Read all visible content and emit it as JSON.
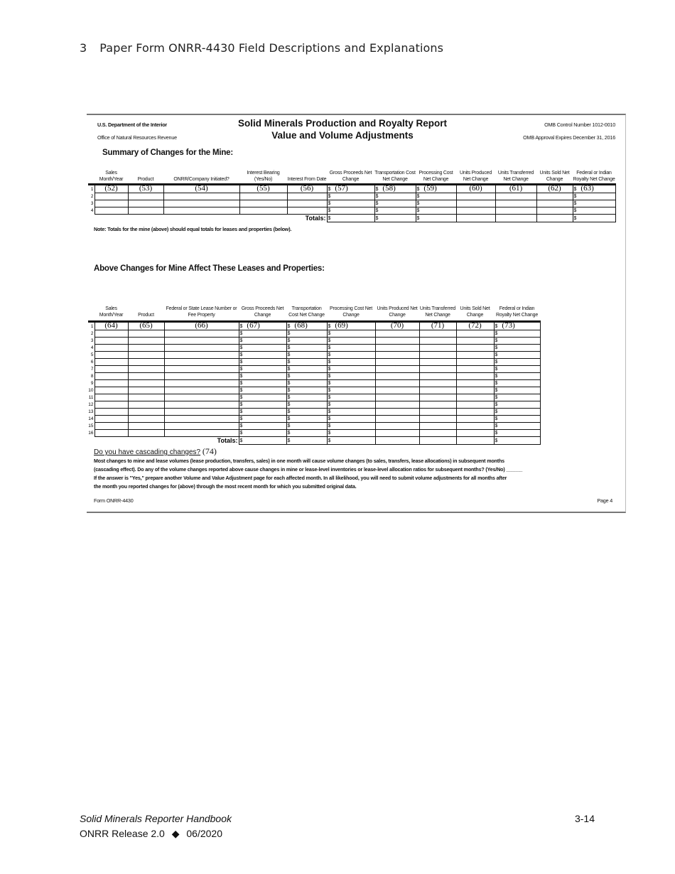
{
  "section_heading": {
    "number": "3",
    "title": "Paper Form ONRR-4430 Field Descriptions and Explanations"
  },
  "form": {
    "agency": "U.S. Department of the Interior",
    "office": "Office of Natural Resources Revenue",
    "title_line1": "Solid Minerals Production and Royalty Report",
    "title_line2": "Value and Volume Adjustments",
    "omb_control": "OMB Control Number 1012-0010",
    "omb_expires": "OMB Approval Expires December 31, 2016",
    "summary": {
      "title": "Summary of Changes for the Mine:",
      "columns": [
        {
          "label": "Sales Month/Year",
          "field": "(52)",
          "dollar": false
        },
        {
          "label": "Product",
          "field": "(53)",
          "dollar": false
        },
        {
          "label": "ONRR/Company Initiated?",
          "field": "(54)",
          "dollar": false
        },
        {
          "label": "Interest Bearing (Yes/No)",
          "field": "(55)",
          "dollar": false
        },
        {
          "label": "Interest From Date",
          "field": "(56)",
          "dollar": false
        },
        {
          "label": "Gross Proceeds Net Change",
          "field": "(57)",
          "dollar": true
        },
        {
          "label": "Transportation Cost Net Change",
          "field": "(58)",
          "dollar": true
        },
        {
          "label": "Processing Cost Net Change",
          "field": "(59)",
          "dollar": true
        },
        {
          "label": "Units Produced Net Change",
          "field": "(60)",
          "dollar": false
        },
        {
          "label": "Units Transferred Net Change",
          "field": "(61)",
          "dollar": false
        },
        {
          "label": "Units Sold Net Change",
          "field": "(62)",
          "dollar": false
        },
        {
          "label": "Federal or Indian Royalty Net Change",
          "field": "(63)",
          "dollar": true
        }
      ],
      "row_numbers": [
        "1",
        "2",
        "3",
        "4"
      ],
      "totals_label": "Totals:",
      "note": "Note: Totals for the mine (above) should equal totals for leases and properties (below)."
    },
    "leases": {
      "title": "Above Changes for Mine Affect These Leases and Properties:",
      "columns": [
        {
          "label": "Sales Month/Year",
          "field": "(64)",
          "dollar": false
        },
        {
          "label": "Product",
          "field": "(65)",
          "dollar": false
        },
        {
          "label": "Federal or State Lease Number or Fee Property",
          "field": "(66)",
          "dollar": false
        },
        {
          "label": "Gross Proceeds Net Change",
          "field": "(67)",
          "dollar": true
        },
        {
          "label": "Transportation Cost Net Change",
          "field": "(68)",
          "dollar": true
        },
        {
          "label": "Processing Cost Net Change",
          "field": "(69)",
          "dollar": true
        },
        {
          "label": "Units Produced Net Change",
          "field": "(70)",
          "dollar": false
        },
        {
          "label": "Units Transferred Net Change",
          "field": "(71)",
          "dollar": false
        },
        {
          "label": "Units Sold Net Change",
          "field": "(72)",
          "dollar": false
        },
        {
          "label": "Federal or Indian Royalty Net Change",
          "field": "(73)",
          "dollar": true
        }
      ],
      "row_numbers": [
        "1",
        "2",
        "3",
        "4",
        "5",
        "6",
        "7",
        "8",
        "9",
        "10",
        "11",
        "12",
        "13",
        "14",
        "15",
        "16"
      ],
      "totals_label": "Totals:"
    },
    "dollar_sign": "$",
    "cascading": {
      "question": "Do you have cascading changes?",
      "field": "(74)",
      "line1": "Most changes to mine and lease volumes (lease production, transfers, sales) in one month will cause volume changes (to sales, transfers, lease allocations) in subsequent months",
      "line2": "(cascading effect).  Do any of the volume changes reported above cause changes in mine or lease-level inventories or lease-level allocation ratios for subsequent months? (Yes/No) ______",
      "line3": "If the answer is \"Yes,\" prepare another Volume and Value Adjustment page for each affected month.  In all likelihood, you will need to submit volume adjustments for all months after",
      "line4": "the month you reported changes for (above) through the most recent month for which you submitted original data."
    },
    "form_id": "Form ONRR-4430",
    "page_label": "Page 4"
  },
  "footer": {
    "handbook": "Solid Minerals  Reporter  Handbook",
    "release": "ONRR  Release  2.0",
    "date": "06/2020",
    "page": "3-14"
  }
}
